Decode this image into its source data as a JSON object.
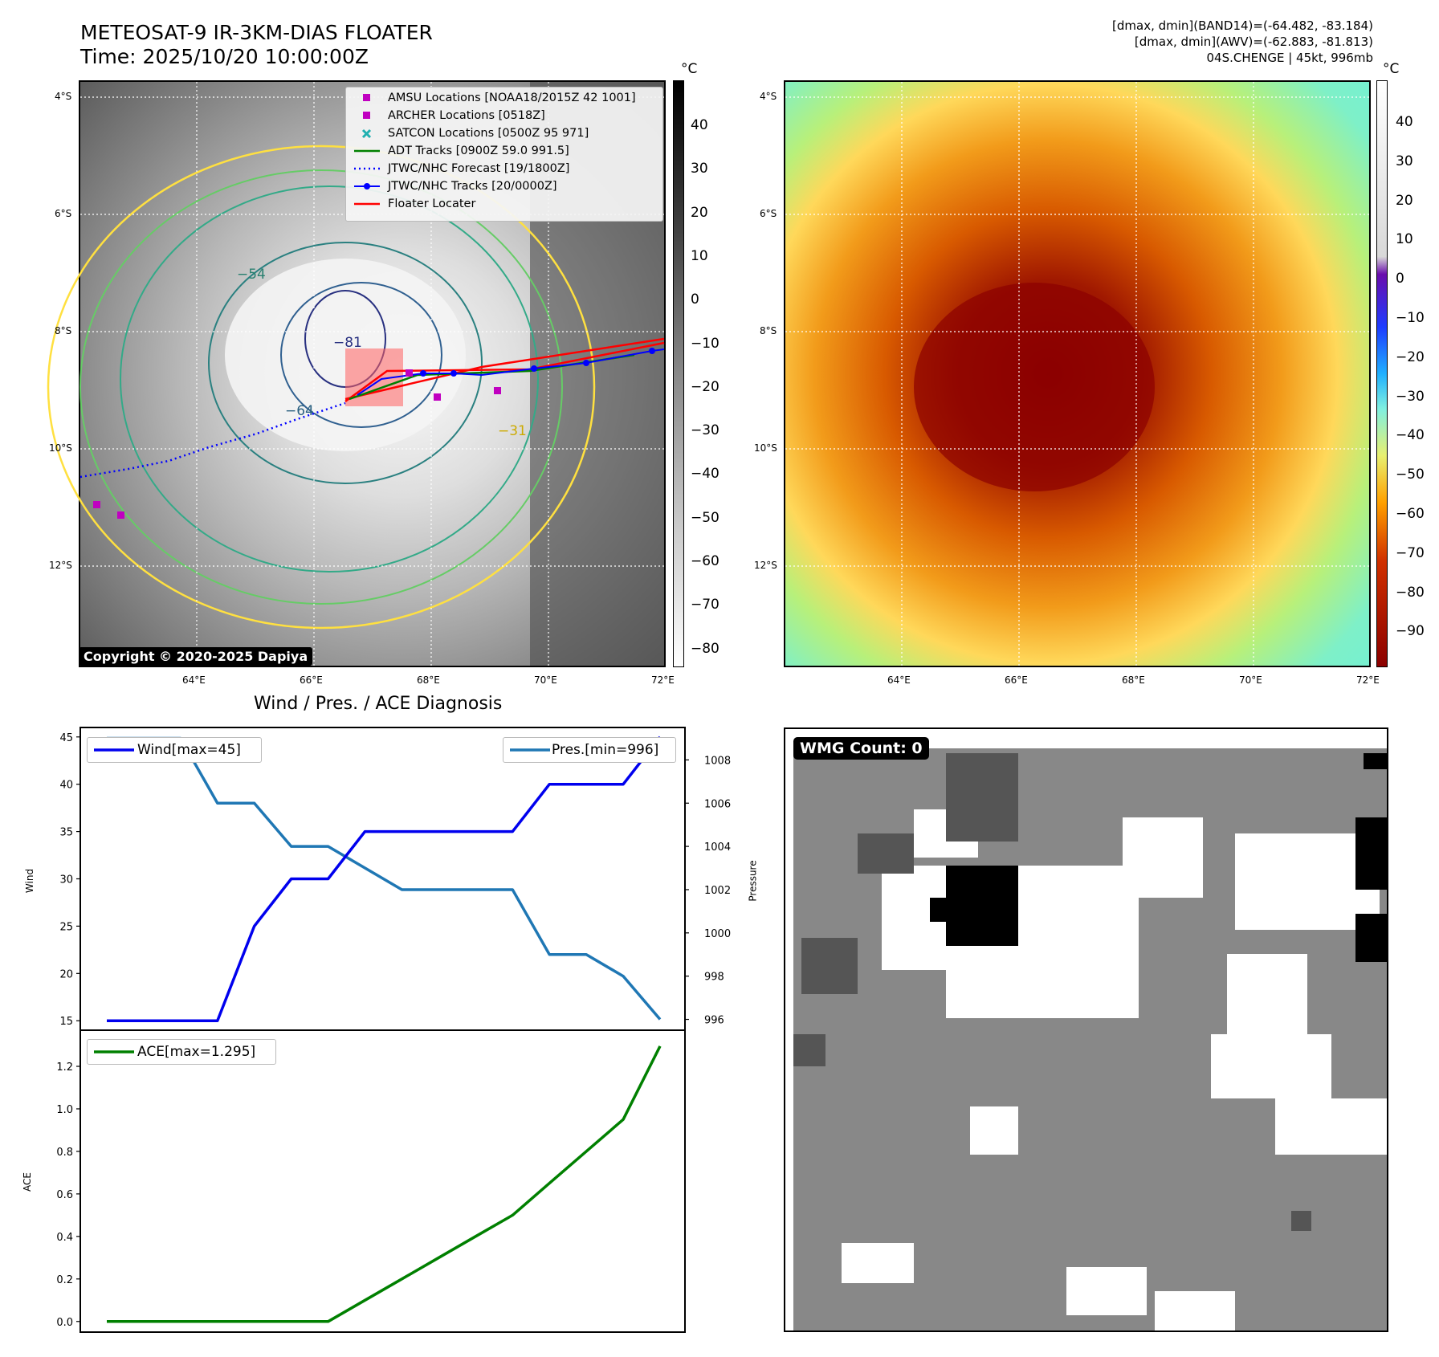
{
  "header": {
    "title_line1": "METEOSAT-9 IR-3KM-DIAS FLOATER",
    "title_line2": "Time: 2025/10/20 10:00:00Z",
    "info_line1": "[dmax, dmin](BAND14)=(-64.482, -83.184)",
    "info_line2": "[dmax, dmin](AWV)=(-62.883, -81.813)",
    "info_line3": "04S.CHENGE | 45kt, 996mb"
  },
  "map_axes": {
    "lat_labels": [
      "4°S",
      "6°S",
      "8°S",
      "10°S",
      "12°S"
    ],
    "lon_labels": [
      "64°E",
      "66°E",
      "68°E",
      "70°E",
      "72°E"
    ]
  },
  "colorbar_ir": {
    "unit": "°C",
    "labels": [
      "40",
      "30",
      "20",
      "10",
      "0",
      "−10",
      "−20",
      "−30",
      "−40",
      "−50",
      "−60",
      "−70",
      "−80"
    ]
  },
  "colorbar_awv": {
    "unit": "°C",
    "labels": [
      "40",
      "30",
      "20",
      "10",
      "0",
      "−10",
      "−20",
      "−30",
      "−40",
      "−50",
      "−60",
      "−70",
      "−80",
      "−90"
    ]
  },
  "legend": {
    "items": [
      {
        "label": "AMSU Locations [NOAA18/2015Z 42 1001]",
        "symbol": "square",
        "color": "#c000c0"
      },
      {
        "label": "ARCHER Locations [0518Z]",
        "symbol": "square",
        "color": "#c000c0"
      },
      {
        "label": "SATCON Locations [0500Z 95 971]",
        "symbol": "x",
        "color": "#20b0b0"
      },
      {
        "label": "ADT Tracks [0900Z 59.0 991.5]",
        "symbol": "line",
        "color": "#008000"
      },
      {
        "label": "JTWC/NHC Forecast [19/1800Z]",
        "symbol": "dotted",
        "color": "#0000ff"
      },
      {
        "label": "JTWC/NHC Tracks [20/0000Z]",
        "symbol": "line-dot",
        "color": "#0000ff"
      },
      {
        "label": "Floater Locater",
        "symbol": "line",
        "color": "#ff0000"
      }
    ]
  },
  "contour_labels": [
    "−54",
    "−31",
    "−64",
    "−81"
  ],
  "copyright": "Copyright © 2020-2025 Dapiya",
  "wmg_label": "WMG Count: 0",
  "colors": {
    "wind": "#0000ee",
    "pressure": "#1f77b4",
    "ace": "#008000",
    "floater": "#ff0000"
  },
  "chart_data": [
    {
      "type": "line",
      "title": "Wind / Pres. / ACE Diagnosis",
      "ylabel": "Wind",
      "y2label": "Pressure",
      "ylim": [
        14,
        46
      ],
      "y2lim": [
        995.5,
        1009.5
      ],
      "yticks": [
        "45",
        "40",
        "35",
        "30",
        "25",
        "20",
        "15"
      ],
      "y2ticks": [
        "1008",
        "1006",
        "1004",
        "1002",
        "1000",
        "998",
        "996"
      ],
      "x": [
        0,
        1,
        2,
        3,
        4,
        5,
        6,
        7,
        8,
        9,
        10,
        11,
        12,
        13,
        14,
        15
      ],
      "series": [
        {
          "name": "Wind[max=45]",
          "axis": "left",
          "values": [
            15,
            15,
            15,
            15,
            25,
            30,
            30,
            35,
            35,
            35,
            35,
            35,
            40,
            40,
            40,
            45
          ]
        },
        {
          "name": "Pres.[min=996]",
          "axis": "right",
          "values": [
            1009,
            1009,
            1009,
            1006,
            1006,
            1004,
            1004,
            1003,
            1002,
            1002,
            1002,
            1002,
            999,
            999,
            998,
            996
          ]
        }
      ],
      "legend": [
        "Wind[max=45]",
        "Pres.[min=996]"
      ]
    },
    {
      "type": "line",
      "ylabel": "ACE",
      "ylim": [
        -0.05,
        1.37
      ],
      "yticks": [
        "1.2",
        "1.0",
        "0.8",
        "0.6",
        "0.4",
        "0.2",
        "0.0"
      ],
      "x": [
        0,
        1,
        2,
        3,
        4,
        5,
        6,
        7,
        8,
        9,
        10,
        11,
        12,
        13,
        14,
        15
      ],
      "series": [
        {
          "name": "ACE[max=1.295]",
          "values": [
            0,
            0,
            0,
            0,
            0,
            0,
            0,
            0.1,
            0.2,
            0.3,
            0.4,
            0.5,
            0.65,
            0.8,
            0.95,
            1.295
          ]
        }
      ],
      "legend": [
        "ACE[max=1.295]"
      ]
    }
  ]
}
